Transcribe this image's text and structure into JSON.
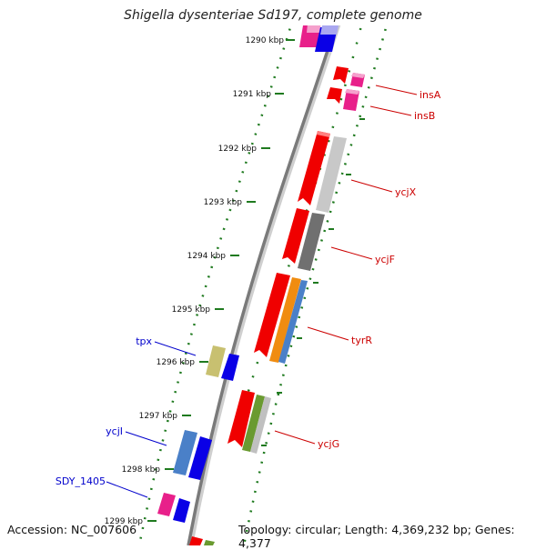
{
  "title": "Shigella dysenteriae Sd197, complete genome",
  "footer": {
    "accession": "Accession: NC_007606",
    "summary": "Topology: circular; Length: 4,369,232 bp; Genes: 4,377"
  },
  "scale": {
    "unit": "kbp",
    "ticks": [
      "1290 kbp",
      "1291 kbp",
      "1292 kbp",
      "1293 kbp",
      "1294 kbp",
      "1295 kbp",
      "1296 kbp",
      "1297 kbp",
      "1298 kbp",
      "1299 kbp"
    ]
  },
  "colors": {
    "backbone": "#7a7a7a",
    "tick": "#1f7a1f",
    "right_label": "#cc0000",
    "left_label": "#0000cc"
  },
  "right_genes": [
    "insA",
    "insB",
    "ycjX",
    "ycjF",
    "tyrR",
    "ycjG"
  ],
  "left_genes": [
    "tpx",
    "ycjI",
    "SDY_1405"
  ]
}
